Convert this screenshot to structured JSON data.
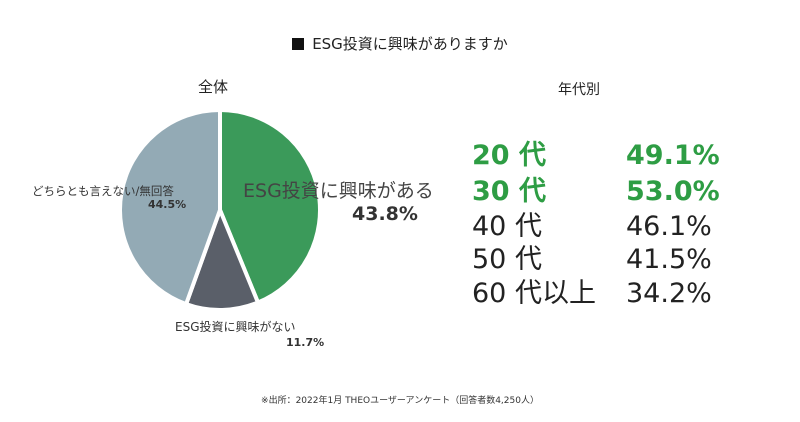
{
  "title": "ESG投資に興味がありますか",
  "pie_caption": "全体",
  "age_caption": "年代別",
  "source": "※出所：2022年1月 THEOユーザーアンケート（回答者数4,250人）",
  "colors": {
    "interested": "#3b9a5a",
    "not_interested": "#5a5f69",
    "undecided": "#93aab5",
    "highlight": "#2e9d44"
  },
  "chart_data": [
    {
      "type": "pie",
      "title": "全体",
      "slices": [
        {
          "label": "ESG投資に興味がある",
          "value": 43.8,
          "display": "43.8%",
          "color": "#3b9a5a"
        },
        {
          "label": "ESG投資に興味がない",
          "value": 11.7,
          "display": "11.7%",
          "color": "#5a5f69"
        },
        {
          "label": "どちらとも言えない/無回答",
          "value": 44.5,
          "display": "44.5%",
          "color": "#93aab5"
        }
      ]
    },
    {
      "type": "table",
      "title": "年代別",
      "rows": [
        {
          "age": "20 代",
          "value": "49.1%",
          "highlight": true
        },
        {
          "age": "30 代",
          "value": "53.0%",
          "highlight": true
        },
        {
          "age": "40 代",
          "value": "46.1%",
          "highlight": false
        },
        {
          "age": "50 代",
          "value": "41.5%",
          "highlight": false
        },
        {
          "age": "60 代以上",
          "value": "34.2%",
          "highlight": false
        }
      ]
    }
  ]
}
